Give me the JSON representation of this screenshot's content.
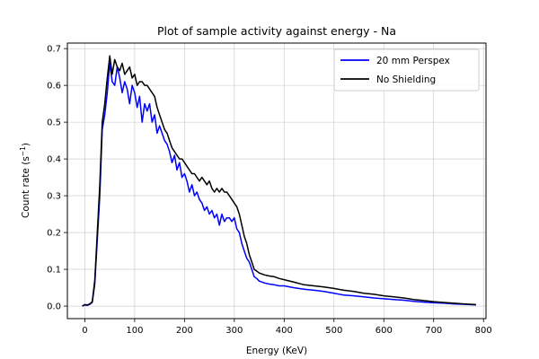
{
  "chart_data": {
    "type": "line",
    "title": "Plot of sample activity against energy - Na",
    "xlabel": "Energy (KeV)",
    "ylabel": "Count rate (s",
    "ylabel_sup": "−1",
    "ylabel_end": ")",
    "xlim": [
      -35,
      805
    ],
    "ylim": [
      -0.034,
      0.715
    ],
    "xticks": [
      0,
      100,
      200,
      300,
      400,
      500,
      600,
      700,
      800
    ],
    "yticks": [
      0.0,
      0.1,
      0.2,
      0.3,
      0.4,
      0.5,
      0.6,
      0.7
    ],
    "grid": true,
    "legend_position": "top-right",
    "series": [
      {
        "name": "20 mm Perspex",
        "color": "#0000ff",
        "x": [
          -5,
          0,
          5,
          10,
          15,
          20,
          25,
          30,
          35,
          40,
          45,
          50,
          55,
          60,
          65,
          70,
          75,
          80,
          85,
          90,
          95,
          100,
          105,
          110,
          115,
          120,
          125,
          130,
          135,
          140,
          145,
          150,
          155,
          160,
          165,
          170,
          175,
          180,
          185,
          190,
          195,
          200,
          205,
          210,
          215,
          220,
          225,
          230,
          235,
          240,
          245,
          250,
          255,
          260,
          265,
          270,
          275,
          280,
          285,
          290,
          295,
          300,
          305,
          310,
          315,
          320,
          325,
          330,
          335,
          340,
          345,
          350,
          360,
          370,
          380,
          390,
          400,
          420,
          440,
          460,
          480,
          500,
          520,
          540,
          560,
          580,
          600,
          620,
          640,
          660,
          680,
          700,
          720,
          740,
          760,
          785
        ],
        "y": [
          0.0,
          0.003,
          0.002,
          0.005,
          0.01,
          0.06,
          0.18,
          0.3,
          0.48,
          0.52,
          0.58,
          0.66,
          0.61,
          0.6,
          0.65,
          0.62,
          0.58,
          0.61,
          0.59,
          0.55,
          0.6,
          0.58,
          0.54,
          0.57,
          0.5,
          0.55,
          0.53,
          0.55,
          0.5,
          0.52,
          0.47,
          0.49,
          0.47,
          0.45,
          0.44,
          0.42,
          0.39,
          0.41,
          0.37,
          0.39,
          0.35,
          0.36,
          0.34,
          0.31,
          0.33,
          0.3,
          0.31,
          0.29,
          0.28,
          0.26,
          0.27,
          0.25,
          0.26,
          0.24,
          0.25,
          0.22,
          0.25,
          0.23,
          0.24,
          0.24,
          0.23,
          0.24,
          0.21,
          0.2,
          0.17,
          0.15,
          0.13,
          0.12,
          0.1,
          0.08,
          0.075,
          0.068,
          0.063,
          0.06,
          0.058,
          0.055,
          0.055,
          0.05,
          0.046,
          0.043,
          0.04,
          0.035,
          0.03,
          0.028,
          0.025,
          0.022,
          0.02,
          0.018,
          0.016,
          0.013,
          0.011,
          0.009,
          0.008,
          0.006,
          0.005,
          0.003
        ]
      },
      {
        "name": "No Shielding",
        "color": "#000000",
        "x": [
          -5,
          0,
          5,
          10,
          15,
          20,
          25,
          30,
          35,
          40,
          45,
          50,
          55,
          60,
          65,
          70,
          75,
          80,
          85,
          90,
          95,
          100,
          105,
          110,
          115,
          120,
          125,
          130,
          135,
          140,
          145,
          150,
          155,
          160,
          165,
          170,
          175,
          180,
          185,
          190,
          195,
          200,
          205,
          210,
          215,
          220,
          225,
          230,
          235,
          240,
          245,
          250,
          255,
          260,
          265,
          270,
          275,
          280,
          285,
          290,
          295,
          300,
          305,
          310,
          315,
          320,
          325,
          330,
          335,
          340,
          345,
          350,
          360,
          370,
          380,
          390,
          400,
          420,
          440,
          460,
          480,
          500,
          520,
          540,
          560,
          580,
          600,
          620,
          640,
          660,
          680,
          700,
          720,
          740,
          760,
          785
        ],
        "y": [
          0.0,
          0.004,
          0.003,
          0.006,
          0.012,
          0.07,
          0.2,
          0.33,
          0.5,
          0.55,
          0.62,
          0.68,
          0.63,
          0.67,
          0.65,
          0.64,
          0.66,
          0.63,
          0.64,
          0.65,
          0.62,
          0.63,
          0.6,
          0.61,
          0.61,
          0.6,
          0.6,
          0.59,
          0.58,
          0.57,
          0.54,
          0.52,
          0.5,
          0.48,
          0.47,
          0.45,
          0.43,
          0.42,
          0.41,
          0.4,
          0.4,
          0.39,
          0.38,
          0.37,
          0.36,
          0.36,
          0.35,
          0.34,
          0.35,
          0.34,
          0.33,
          0.34,
          0.32,
          0.31,
          0.32,
          0.31,
          0.32,
          0.31,
          0.31,
          0.3,
          0.29,
          0.28,
          0.27,
          0.25,
          0.22,
          0.19,
          0.17,
          0.14,
          0.12,
          0.1,
          0.095,
          0.09,
          0.085,
          0.082,
          0.08,
          0.075,
          0.072,
          0.065,
          0.058,
          0.055,
          0.052,
          0.048,
          0.043,
          0.04,
          0.035,
          0.032,
          0.028,
          0.025,
          0.022,
          0.018,
          0.015,
          0.012,
          0.01,
          0.008,
          0.006,
          0.004
        ]
      }
    ]
  }
}
